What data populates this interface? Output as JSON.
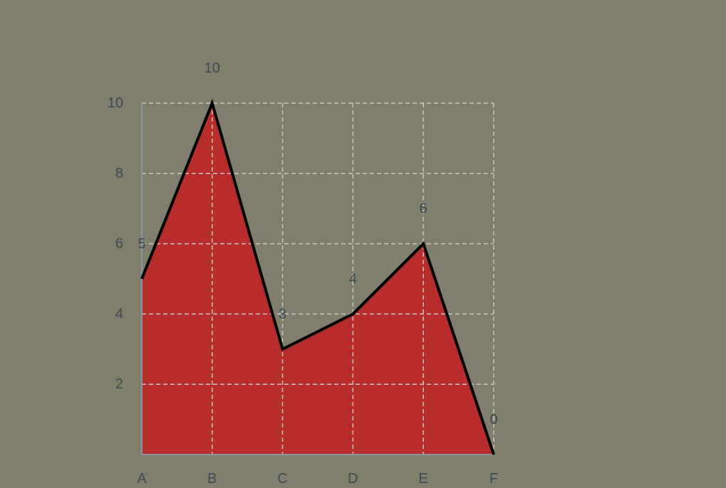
{
  "chart_data": {
    "type": "area",
    "categories": [
      "A",
      "B",
      "C",
      "D",
      "E",
      "F"
    ],
    "series": [
      {
        "values": [
          5,
          10,
          3,
          4,
          6,
          0
        ]
      }
    ],
    "title": "",
    "xlabel": "",
    "ylabel": "",
    "ylim": [
      0,
      10
    ],
    "yticks": [
      "2",
      "4",
      "6",
      "8",
      "10"
    ],
    "data_labels": [
      "5",
      "10",
      "3",
      "4",
      "6",
      "0"
    ],
    "grid": true,
    "legend": "none",
    "colors": {
      "background": "#807f6d",
      "area_fill": "#b92c2c",
      "line": "#000000",
      "grid": "#c8c8c0",
      "axis": "#8a949a",
      "text": "#3d4a52"
    }
  }
}
